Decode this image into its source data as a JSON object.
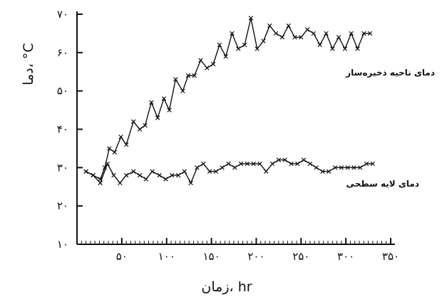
{
  "chart_data": {
    "type": "line",
    "title": "",
    "xlabel": "زمان، hr",
    "ylabel": "دما، °C",
    "xlim": [
      0,
      350
    ],
    "ylim": [
      10,
      70
    ],
    "x_ticks": [
      {
        "value": 50,
        "label": "۵۰"
      },
      {
        "value": 100,
        "label": "۱۰۰"
      },
      {
        "value": 150,
        "label": "۱۵۰"
      },
      {
        "value": 200,
        "label": "۲۰۰"
      },
      {
        "value": 250,
        "label": "۲۵۰"
      },
      {
        "value": 300,
        "label": "۳۰۰"
      },
      {
        "value": 350,
        "label": "۳۵۰"
      }
    ],
    "y_ticks": [
      {
        "value": 10,
        "label": "۱۰"
      },
      {
        "value": 20,
        "label": "۲۰"
      },
      {
        "value": 30,
        "label": "۳۰"
      },
      {
        "value": 40,
        "label": "۴۰"
      },
      {
        "value": 50,
        "label": "۵۰"
      },
      {
        "value": 60,
        "label": "۶۰"
      },
      {
        "value": 70,
        "label": "۷۰"
      }
    ],
    "grid": false,
    "legend": "inline",
    "series": [
      {
        "name": "دمای ناحیه ذخیره‌ساز",
        "color": "#111111",
        "x": [
          10,
          18,
          26,
          31,
          36,
          42,
          49,
          55,
          63,
          70,
          76,
          83,
          90,
          97,
          103,
          110,
          118,
          124,
          131,
          138,
          145,
          152,
          159,
          166,
          173,
          180,
          187,
          194,
          201,
          208,
          215,
          222,
          229,
          236,
          243,
          250,
          257,
          264,
          271,
          278,
          285,
          292,
          299,
          306,
          313,
          320,
          327
        ],
        "values": [
          29,
          28,
          27,
          30,
          35,
          34,
          38,
          36,
          42,
          40,
          41,
          47,
          43,
          48,
          45,
          53,
          50,
          54,
          54,
          58,
          56,
          57,
          62,
          59,
          65,
          61,
          62,
          69,
          61,
          63,
          67,
          65,
          64,
          67,
          64,
          64,
          66,
          65,
          62,
          65,
          61,
          64,
          61,
          65,
          61,
          65,
          65
        ]
      },
      {
        "name": "دمای لایه سطحی",
        "color": "#111111",
        "x": [
          10,
          18,
          26,
          34,
          41,
          48,
          55,
          63,
          70,
          77,
          84,
          92,
          99,
          106,
          113,
          120,
          127,
          134,
          141,
          148,
          155,
          162,
          169,
          176,
          183,
          190,
          197,
          204,
          211,
          218,
          225,
          232,
          239,
          246,
          253,
          260,
          267,
          274,
          281,
          288,
          295,
          302,
          309,
          316,
          323,
          330
        ],
        "values": [
          29,
          28,
          26,
          31,
          28,
          26,
          28,
          29,
          28,
          27,
          29,
          28,
          27,
          28,
          28,
          29,
          26,
          30,
          31,
          29,
          29,
          30,
          31,
          30,
          31,
          31,
          31,
          31,
          29,
          31,
          32,
          32,
          31,
          31,
          32,
          31,
          30,
          29,
          29,
          30,
          30,
          30,
          30,
          30,
          31,
          31
        ]
      }
    ]
  }
}
